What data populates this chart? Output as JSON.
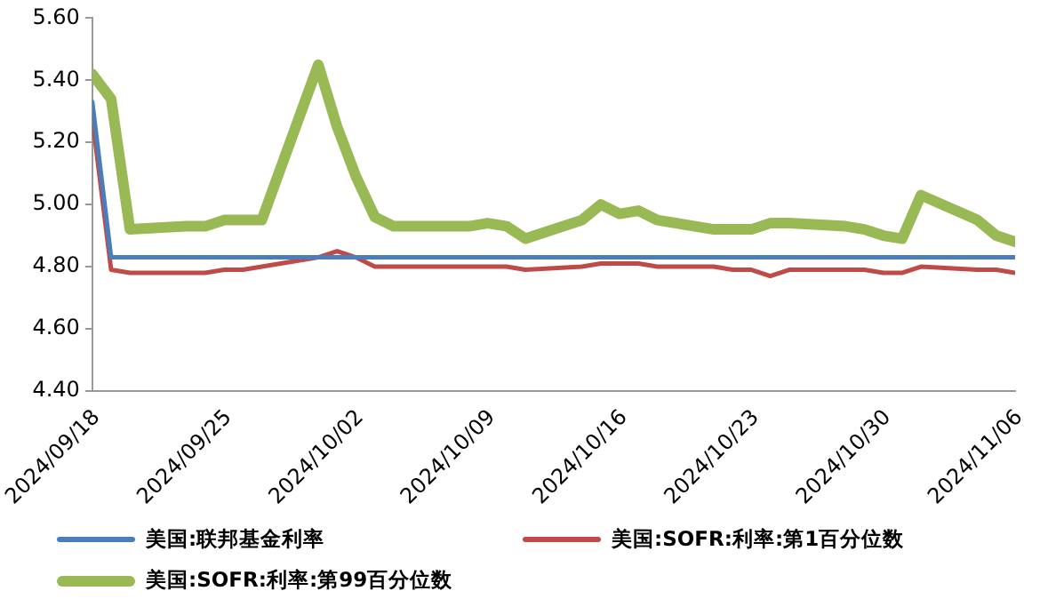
{
  "chart_data": {
    "type": "line",
    "x": [
      "2024-09-18",
      "2024-09-19",
      "2024-09-20",
      "2024-09-23",
      "2024-09-24",
      "2024-09-25",
      "2024-09-26",
      "2024-09-27",
      "2024-09-30",
      "2024-10-01",
      "2024-10-02",
      "2024-10-03",
      "2024-10-04",
      "2024-10-07",
      "2024-10-08",
      "2024-10-09",
      "2024-10-10",
      "2024-10-11",
      "2024-10-14",
      "2024-10-15",
      "2024-10-16",
      "2024-10-17",
      "2024-10-18",
      "2024-10-21",
      "2024-10-22",
      "2024-10-23",
      "2024-10-24",
      "2024-10-25",
      "2024-10-28",
      "2024-10-29",
      "2024-10-30",
      "2024-10-31",
      "2024-11-01",
      "2024-11-04",
      "2024-11-05",
      "2024-11-06"
    ],
    "series": [
      {
        "name": "美国:联邦基金利率",
        "color": "#4a7ebb",
        "values": [
          5.33,
          4.83,
          4.83,
          4.83,
          4.83,
          4.83,
          4.83,
          4.83,
          4.83,
          4.83,
          4.83,
          4.83,
          4.83,
          4.83,
          4.83,
          4.83,
          4.83,
          4.83,
          4.83,
          4.83,
          4.83,
          4.83,
          4.83,
          4.83,
          4.83,
          4.83,
          4.83,
          4.83,
          4.83,
          4.83,
          4.83,
          4.83,
          4.83,
          4.83,
          4.83,
          4.83
        ]
      },
      {
        "name": "美国:SOFR:利率:第1百分位数",
        "color": "#be4b48",
        "values": [
          5.28,
          4.79,
          4.78,
          4.78,
          4.78,
          4.79,
          4.79,
          4.8,
          4.83,
          4.85,
          4.83,
          4.8,
          4.8,
          4.8,
          4.8,
          4.8,
          4.8,
          4.79,
          4.8,
          4.81,
          4.81,
          4.81,
          4.8,
          4.8,
          4.79,
          4.79,
          4.77,
          4.79,
          4.79,
          4.79,
          4.78,
          4.78,
          4.8,
          4.79,
          4.79,
          4.78
        ]
      },
      {
        "name": "美国:SOFR:利率:第99百分位数",
        "color": "#98b954",
        "values": [
          5.42,
          5.34,
          4.92,
          4.93,
          4.93,
          4.95,
          4.95,
          4.95,
          5.45,
          5.25,
          5.09,
          4.96,
          4.93,
          4.93,
          4.93,
          4.94,
          4.93,
          4.89,
          4.95,
          5.0,
          4.97,
          4.98,
          4.95,
          4.92,
          4.92,
          4.92,
          4.94,
          4.94,
          4.93,
          4.92,
          4.9,
          4.89,
          5.03,
          4.95,
          4.9,
          4.88
        ]
      }
    ],
    "xlim": [
      "2024-09-18",
      "2024-11-06"
    ],
    "xticks": [
      {
        "value": "2024-09-18",
        "label": "2024/09/18"
      },
      {
        "value": "2024-09-25",
        "label": "2024/09/25"
      },
      {
        "value": "2024-10-02",
        "label": "2024/10/02"
      },
      {
        "value": "2024-10-09",
        "label": "2024/10/09"
      },
      {
        "value": "2024-10-16",
        "label": "2024/10/16"
      },
      {
        "value": "2024-10-23",
        "label": "2024/10/23"
      },
      {
        "value": "2024-10-30",
        "label": "2024/10/30"
      },
      {
        "value": "2024-11-06",
        "label": "2024/11/06"
      }
    ],
    "ylim": [
      4.4,
      5.6
    ],
    "yticks": [
      {
        "value": 4.4,
        "label": "4.40"
      },
      {
        "value": 4.6,
        "label": "4.60"
      },
      {
        "value": 4.8,
        "label": "4.80"
      },
      {
        "value": 5.0,
        "label": "5.00"
      },
      {
        "value": 5.2,
        "label": "5.20"
      },
      {
        "value": 5.4,
        "label": "5.40"
      },
      {
        "value": 5.6,
        "label": "5.60"
      }
    ],
    "grid": false,
    "legend": "bottom",
    "marker": "none",
    "line_style": "solid"
  }
}
